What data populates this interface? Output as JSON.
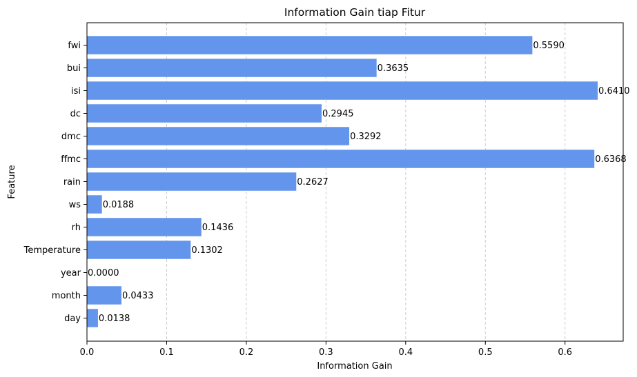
{
  "chart_data": {
    "type": "bar",
    "orientation": "horizontal",
    "title": "Information Gain tiap Fitur",
    "xlabel": "Information Gain",
    "ylabel": "Feature",
    "categories": [
      "fwi",
      "bui",
      "isi",
      "dc",
      "dmc",
      "ffmc",
      "rain",
      "ws",
      "rh",
      "Temperature",
      "year",
      "month",
      "day"
    ],
    "values": [
      0.559,
      0.3635,
      0.641,
      0.2945,
      0.3292,
      0.6368,
      0.2627,
      0.0188,
      0.1436,
      0.1302,
      0.0,
      0.0433,
      0.0138
    ],
    "value_labels": [
      "0.5590",
      "0.3635",
      "0.6410",
      "0.2945",
      "0.3292",
      "0.6368",
      "0.2627",
      "0.0188",
      "0.1436",
      "0.1302",
      "0.0000",
      "0.0433",
      "0.0138"
    ],
    "xlim": [
      0,
      0.673
    ],
    "xticks": [
      0,
      0.1,
      0.2,
      0.3,
      0.4,
      0.5,
      0.6
    ],
    "xtick_labels": [
      "0.0",
      "0.1",
      "0.2",
      "0.3",
      "0.4",
      "0.5",
      "0.6"
    ],
    "grid": "x-axis dashed",
    "bar_color": "#6495ED",
    "grid_color": "#cccccc"
  }
}
